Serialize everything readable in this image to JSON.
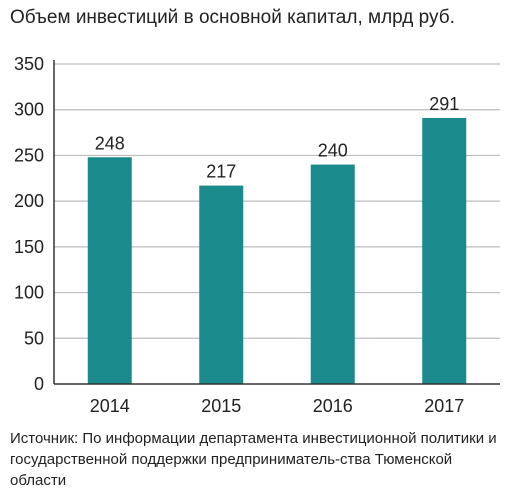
{
  "chart_data": {
    "type": "bar",
    "title": "Объем инвестиций в основной капитал, млрд руб.",
    "categories": [
      "2014",
      "2015",
      "2016",
      "2017"
    ],
    "values": [
      248,
      217,
      240,
      291
    ],
    "data_labels": [
      "248",
      "217",
      "240",
      "291"
    ],
    "ylim": [
      0,
      350
    ],
    "yticks": [
      0,
      50,
      100,
      150,
      200,
      250,
      300,
      350
    ],
    "xlabel": "",
    "ylabel": "",
    "grid": true,
    "legend": "none",
    "bar_color": "#1a8a8c",
    "grid_color": "#bdbdbd",
    "axis_color": "#333333"
  },
  "source": "Источник: По информации департамента инвестиционной политики и государственной поддержки предприниматель-ства Тюменской области"
}
